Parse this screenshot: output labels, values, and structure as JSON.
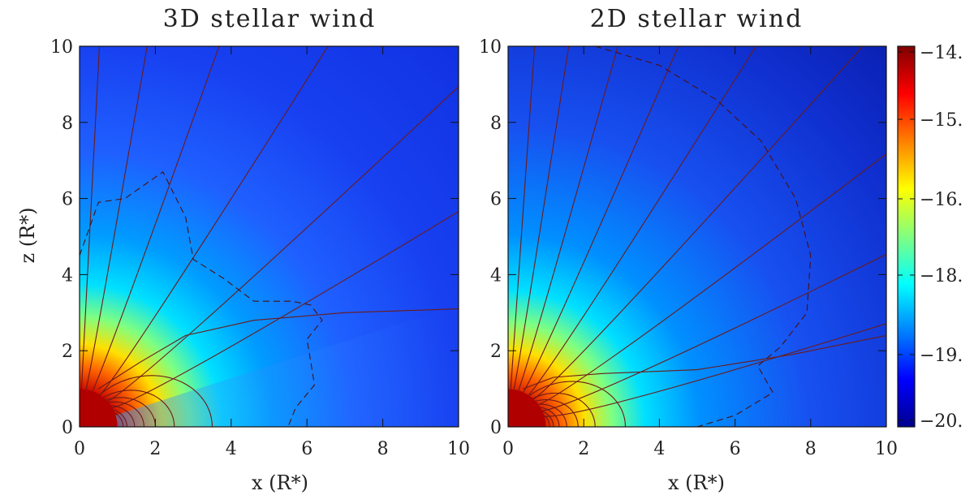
{
  "chart_data": [
    {
      "type": "heatmap",
      "title": "3D stellar wind",
      "xlabel": "x (R*)",
      "ylabel": "z (R*)",
      "xlim": [
        0,
        10
      ],
      "ylim": [
        0,
        10
      ],
      "x_ticks": [
        "0",
        "2",
        "4",
        "6",
        "8",
        "10"
      ],
      "y_ticks": [
        "0",
        "2",
        "4",
        "6",
        "8",
        "10"
      ],
      "x_tick_values": [
        0,
        2,
        4,
        6,
        8,
        10
      ],
      "y_tick_values": [
        0,
        2,
        4,
        6,
        8,
        10
      ],
      "dashed_contour": [
        [
          0,
          4.5
        ],
        [
          0.5,
          5.9
        ],
        [
          1.2,
          6.0
        ],
        [
          2.2,
          6.7
        ],
        [
          2.8,
          5.5
        ],
        [
          3.0,
          4.4
        ],
        [
          3.8,
          3.9
        ],
        [
          4.6,
          3.3
        ],
        [
          5.6,
          3.3
        ],
        [
          6.1,
          3.2
        ],
        [
          6.4,
          2.8
        ],
        [
          6.0,
          2.3
        ],
        [
          6.1,
          1.7
        ],
        [
          6.2,
          1.1
        ],
        [
          5.7,
          0.5
        ],
        [
          5.5,
          0
        ]
      ],
      "open_field_lines_angles_deg": [
        3,
        10,
        20,
        33,
        48,
        60
      ],
      "field_line_end_x": 10,
      "outer_field_line": [
        [
          0.5,
          1.0
        ],
        [
          1.6,
          1.7
        ],
        [
          2.8,
          2.4
        ],
        [
          4.6,
          2.8
        ],
        [
          7.0,
          3.0
        ],
        [
          10,
          3.1
        ]
      ],
      "closed_loops_rmax": [
        1.15,
        1.25,
        1.45,
        1.7,
        2.0,
        2.5,
        3.5
      ]
    },
    {
      "type": "heatmap",
      "title": "2D stellar wind",
      "xlabel": "x (R*)",
      "ylabel": "",
      "xlim": [
        0,
        10
      ],
      "ylim": [
        0,
        10
      ],
      "x_ticks": [
        "0",
        "2",
        "4",
        "6",
        "8",
        "10"
      ],
      "y_ticks": [
        "0",
        "2",
        "4",
        "6",
        "8",
        "10"
      ],
      "x_tick_values": [
        0,
        2,
        4,
        6,
        8,
        10
      ],
      "y_tick_values": [
        0,
        2,
        4,
        6,
        8,
        10
      ],
      "dashed_contour": [
        [
          2.3,
          10
        ],
        [
          4.0,
          9.5
        ],
        [
          5.5,
          8.6
        ],
        [
          6.7,
          7.5
        ],
        [
          7.6,
          6.0
        ],
        [
          8.0,
          4.5
        ],
        [
          7.9,
          3.0
        ],
        [
          7.2,
          2.1
        ],
        [
          6.6,
          1.6
        ],
        [
          7.0,
          0.9
        ],
        [
          6.0,
          0.3
        ],
        [
          5.0,
          0
        ],
        [
          4.0,
          0
        ]
      ],
      "open_field_lines_angles_deg": [
        4,
        9,
        16,
        24,
        33,
        43,
        54,
        65,
        74
      ],
      "field_line_end_x": 10,
      "outer_field_line": [
        [
          0.4,
          1.0
        ],
        [
          1.2,
          1.3
        ],
        [
          2.5,
          1.4
        ],
        [
          5.0,
          1.5
        ],
        [
          7.5,
          1.9
        ],
        [
          10,
          2.4
        ]
      ],
      "closed_loops_rmax": [
        1.1,
        1.2,
        1.35,
        1.55,
        1.85,
        2.3,
        3.1
      ]
    }
  ],
  "colorbar": {
    "ticks": [
      "−14.",
      "−15.",
      "−16.",
      "−18.",
      "−19.",
      "−20."
    ],
    "tick_values": [
      -14,
      -15,
      -16,
      -18,
      -19,
      -20
    ],
    "range": [
      -20.2,
      -13.8
    ],
    "colors": [
      "#00008f",
      "#0000ff",
      "#0080ff",
      "#00ffff",
      "#80ff80",
      "#ffff00",
      "#ff8000",
      "#ff0000",
      "#800000"
    ]
  },
  "colors": {
    "field_line": "#6b1a1a",
    "dashed_line": "#4a0f0f",
    "star_core": "#b00000"
  }
}
